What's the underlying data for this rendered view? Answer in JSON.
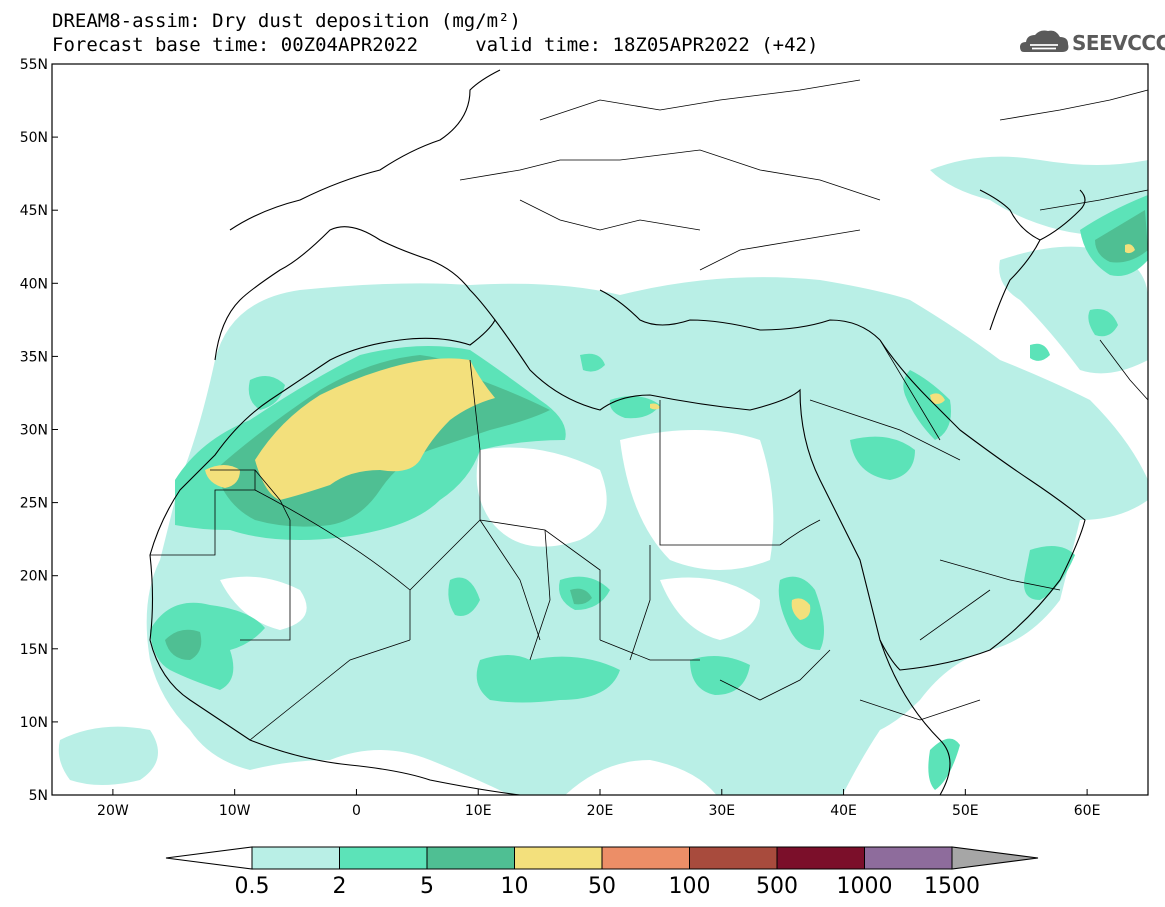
{
  "header": {
    "title_line1": "DREAM8-assim: Dry dust deposition (mg/m²)",
    "title_line2": "Forecast base time: 00Z04APR2022     valid time: 18Z05APR2022 (+42)",
    "logo_text": "SEEVCCC",
    "logo_icon": "cloud-logo-icon"
  },
  "map": {
    "lon_range": [
      -25,
      65
    ],
    "lat_range": [
      5,
      55
    ],
    "lat_labels": [
      "55N",
      "50N",
      "45N",
      "40N",
      "35N",
      "30N",
      "25N",
      "20N",
      "15N",
      "10N",
      "5N"
    ],
    "lon_labels": [
      "20W",
      "10W",
      "0",
      "10E",
      "20E",
      "30E",
      "40E",
      "50E",
      "60E"
    ]
  },
  "colorbar": {
    "labels": [
      "0.5",
      "2",
      "5",
      "10",
      "50",
      "100",
      "500",
      "1000",
      "1500"
    ],
    "colors": [
      "#b9efe6",
      "#5ce3b8",
      "#4fbf93",
      "#f3e07c",
      "#ec8e67",
      "#a84b3d",
      "#7b0f2a",
      "#8e6c9c"
    ],
    "under_color": "#ffffff",
    "over_color": "#a6a6a6"
  }
}
